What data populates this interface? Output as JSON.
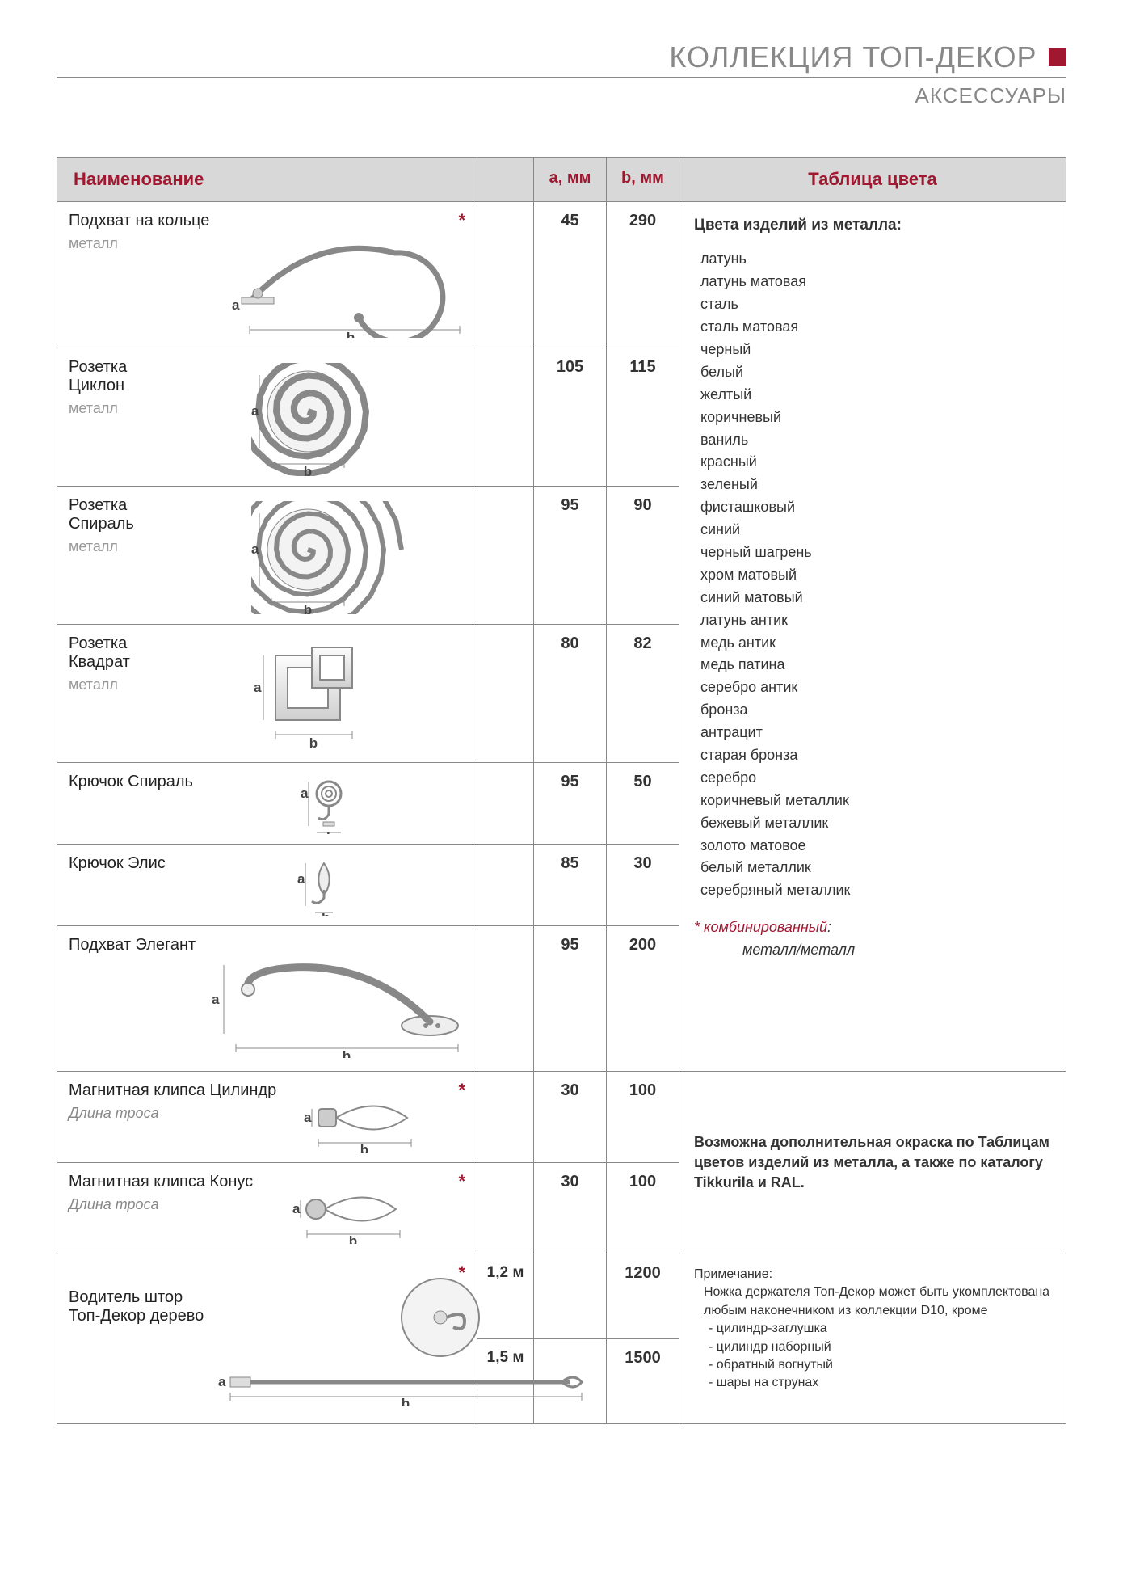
{
  "header": {
    "title": "КОЛЛЕКЦИЯ  ТОП-ДЕКОР",
    "subtitle": "АКСЕССУАРЫ",
    "accent_color": "#a01830",
    "line_color": "#888888"
  },
  "table": {
    "headers": {
      "name": "Наименование",
      "a": "a, мм",
      "b": "b, мм",
      "color": "Таблица цвета"
    },
    "rows": [
      {
        "title": "Подхват на кольце",
        "subtitle": "металл",
        "star": true,
        "a": "45",
        "b": "290",
        "size": "lg",
        "shape": "ring"
      },
      {
        "title": "Розетка\nЦиклон",
        "subtitle": "металл",
        "star": false,
        "a": "105",
        "b": "115",
        "size": "md",
        "shape": "spiral-loose"
      },
      {
        "title": "Розетка\nСпираль",
        "subtitle": "металл",
        "star": false,
        "a": "95",
        "b": "90",
        "size": "md",
        "shape": "spiral-tight"
      },
      {
        "title": "Розетка\nКвадрат",
        "subtitle": "металл",
        "star": false,
        "a": "80",
        "b": "82",
        "size": "md",
        "shape": "squares"
      },
      {
        "title": "Крючок  Спираль",
        "subtitle": "",
        "star": false,
        "a": "95",
        "b": "50",
        "size": "sm",
        "shape": "hook-spiral"
      },
      {
        "title": "Крючок  Элис",
        "subtitle": "",
        "star": false,
        "a": "85",
        "b": "30",
        "size": "sm",
        "shape": "hook-drop"
      },
      {
        "title": "Подхват Элегант",
        "subtitle": "",
        "star": false,
        "a": "95",
        "b": "200",
        "size": "lg",
        "shape": "elegant"
      },
      {
        "title": "Магнитная  клипса  Цилиндр",
        "subtitle_italic": "Длина троса",
        "star": true,
        "a": "30",
        "b": "100",
        "size": "xs",
        "shape": "clip-cyl"
      },
      {
        "title": "Магнитная  клипса  Конус",
        "subtitle_italic": "Длина троса",
        "star": true,
        "a": "30",
        "b": "100",
        "size": "xs",
        "shape": "clip-cone"
      }
    ],
    "driver": {
      "title": "Водитель штор Топ-Декор дерево",
      "star": true,
      "variants": [
        {
          "label": "1,2 м",
          "a": "",
          "b": "1200"
        },
        {
          "label": "1,5 м",
          "a": "",
          "b": "1500"
        }
      ]
    }
  },
  "color_panel": {
    "heading": "Цвета изделий из металла:",
    "colors": [
      "латунь",
      "латунь матовая",
      "сталь",
      "сталь матовая",
      "черный",
      "белый",
      "желтый",
      "коричневый",
      "ваниль",
      "красный",
      "зеленый",
      "фисташковый",
      "синий",
      "черный шагрень",
      "хром матовый",
      "синий матовый",
      "латунь антик",
      "медь антик",
      "медь патина",
      "серебро антик",
      "бронза",
      "антрацит",
      "старая бронза",
      "серебро",
      "коричневый металлик",
      "бежевый металлик",
      "золото матовое",
      "белый металлик",
      "серебряный металлик"
    ],
    "combined_note_star": "* комбинированный",
    "combined_note_sub": "металл/металл",
    "additional_paint": "Возможна дополнительная окраска по Таблицам цветов изделий из металла, а также по каталогу Tikkurila и RAL.",
    "footnote_title": "Примечание:",
    "footnote_body": "Ножка держателя Топ-Декор может быть укомплектована любым наконечником из коллекции D10, кроме",
    "footnote_list": [
      "цилиндр-заглушка",
      "цилиндр наборный",
      "обратный вогнутый",
      "шары на струнах"
    ]
  },
  "style": {
    "header_bg": "#d8d8d8",
    "border_color": "#888888",
    "text_color": "#333333",
    "muted_color": "#999999",
    "accent_color": "#a01830",
    "font_family": "Arial"
  }
}
